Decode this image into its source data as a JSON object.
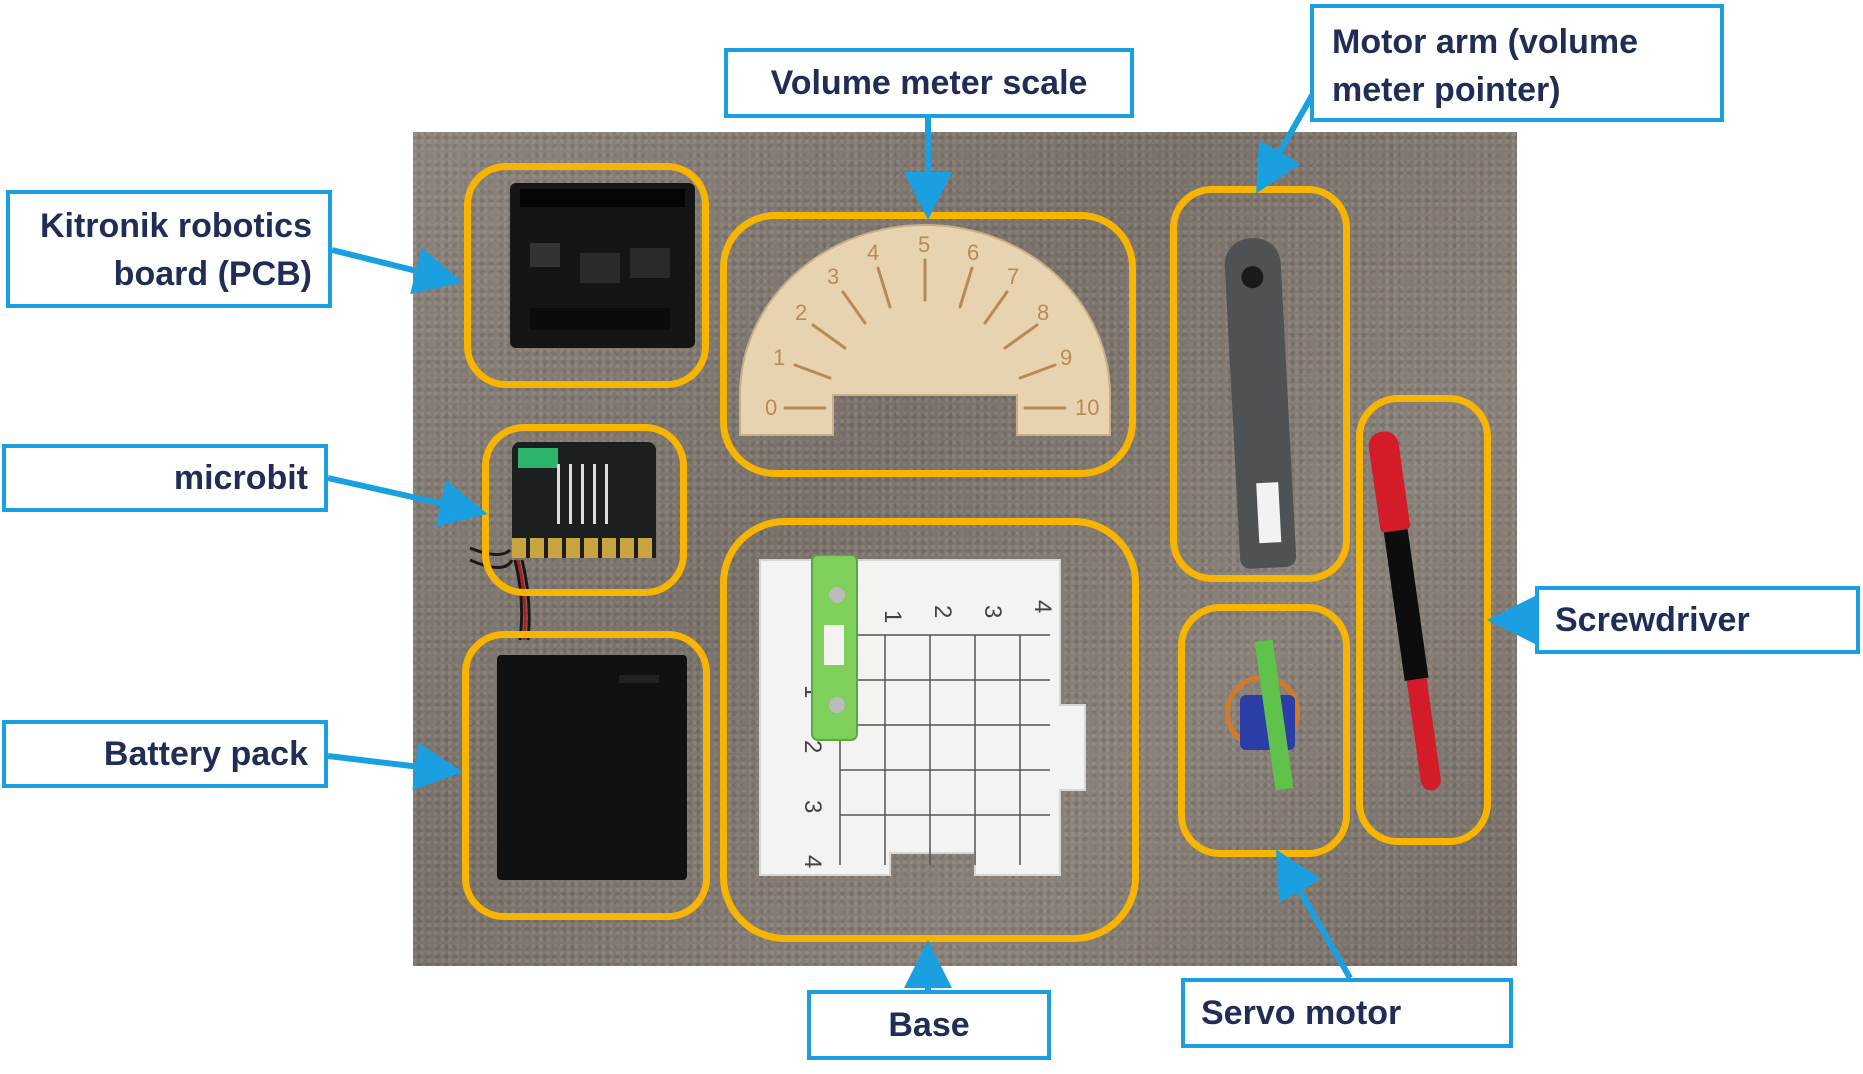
{
  "labels": {
    "volume_meter_scale": "Volume meter scale",
    "motor_arm_line1": "Motor arm (volume",
    "motor_arm_line2": "meter pointer)",
    "kitronik_line1": "Kitronik robotics",
    "kitronik_line2": "board (PCB)",
    "microbit": "microbit",
    "battery_pack": "Battery pack",
    "screwdriver": "Screwdriver",
    "base": "Base",
    "servo_motor": "Servo motor"
  },
  "scale_numbers": [
    "0",
    "1",
    "2",
    "3",
    "4",
    "5",
    "6",
    "7",
    "8",
    "9",
    "10"
  ],
  "base_numbers_top": [
    "1",
    "2",
    "3",
    "4"
  ],
  "base_numbers_side": [
    "1",
    "2",
    "3",
    "4"
  ],
  "colors": {
    "label_border": "#1aa0e0",
    "label_text": "#1f2d57",
    "highlight_ring": "#f7b500",
    "arrow": "#1aa0e0"
  }
}
